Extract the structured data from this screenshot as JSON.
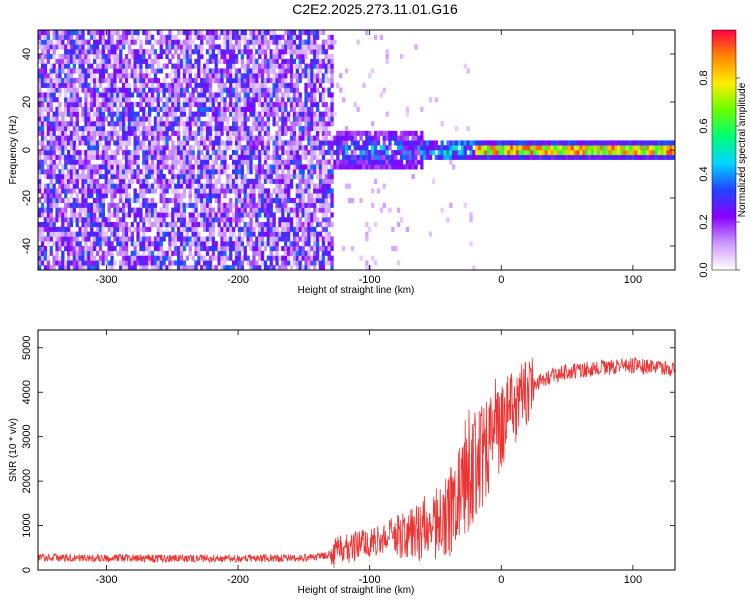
{
  "title": "C2E2.2025.273.11.01.G16",
  "chart_data": [
    {
      "type": "heatmap",
      "title": "C2E2.2025.273.11.01.G16",
      "xlabel": "Height of straight line (km)",
      "ylabel": "Frequency (Hz)",
      "xlim": [
        -352,
        132
      ],
      "ylim": [
        -50,
        50
      ],
      "xticks": [
        -300,
        -200,
        -100,
        0,
        100
      ],
      "yticks": [
        -40,
        -20,
        0,
        20,
        40
      ],
      "colorbar": {
        "label": "Normalized spectral amplitude",
        "range": [
          0,
          1
        ],
        "ticks": [
          0.0,
          0.2,
          0.4,
          0.6,
          0.8
        ],
        "colors": [
          "#ffffff",
          "#cc99ff",
          "#8800ff",
          "#2244ff",
          "#00d4ff",
          "#00ff77",
          "#66ff00",
          "#ffee00",
          "#ff8800",
          "#ff0044"
        ]
      },
      "regions": [
        {
          "x_range": [
            -352,
            -128
          ],
          "f_range": [
            -50,
            50
          ],
          "amplitude": 0.15,
          "pattern": "broadband noise"
        },
        {
          "x_range": [
            -128,
            -20
          ],
          "f_range": [
            -8,
            8
          ],
          "amplitude": 0.4,
          "pattern": "concentrated near 0 Hz"
        },
        {
          "x_range": [
            -20,
            132
          ],
          "f_range": [
            -3,
            3
          ],
          "amplitude": 0.9,
          "pattern": "narrow tone at 0 Hz"
        }
      ]
    },
    {
      "type": "line",
      "xlabel": "Height of straight line (km)",
      "ylabel": "SNR (10 * v/v)",
      "xlim": [
        -352,
        132
      ],
      "ylim": [
        0,
        5400
      ],
      "xticks": [
        -300,
        -200,
        -100,
        0,
        100
      ],
      "yticks": [
        0,
        1000,
        2000,
        3000,
        4000,
        5000
      ],
      "color": "#ee3333",
      "series": [
        {
          "x": [
            -350,
            -300,
            -250,
            -200,
            -150,
            -130,
            -110,
            -90,
            -70,
            -50,
            -40,
            -30,
            -20,
            -10,
            0,
            5,
            10,
            15,
            20,
            30,
            40,
            60,
            80,
            100,
            130
          ],
          "y": [
            280,
            270,
            260,
            260,
            270,
            350,
            550,
            700,
            800,
            1000,
            1300,
            1800,
            2300,
            2800,
            3200,
            3500,
            3700,
            3900,
            4000,
            4250,
            4400,
            4500,
            4550,
            4600,
            4500
          ]
        }
      ]
    }
  ]
}
